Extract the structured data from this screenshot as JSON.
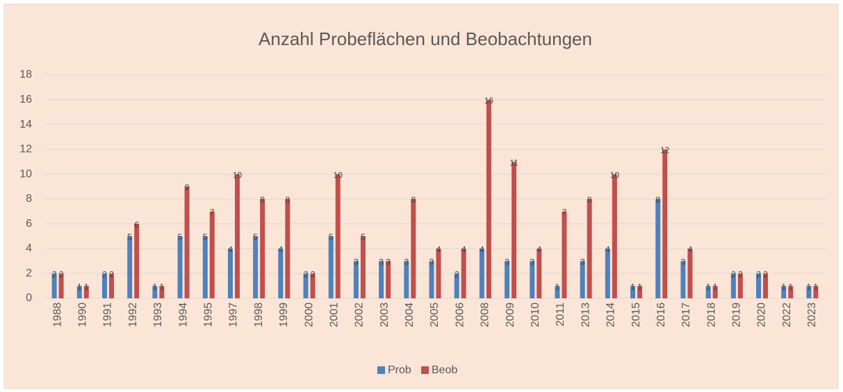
{
  "chart_data": {
    "type": "bar",
    "title": "Anzahl Probeflächen und Beobachtungen",
    "categories": [
      "1988",
      "1990",
      "1991",
      "1992",
      "1993",
      "1994",
      "1995",
      "1997",
      "1998",
      "1999",
      "2000",
      "2001",
      "2002",
      "2003",
      "2004",
      "2005",
      "2006",
      "2008",
      "2009",
      "2010",
      "2011",
      "2013",
      "2014",
      "2015",
      "2016",
      "2017",
      "2018",
      "2019",
      "2020",
      "2022",
      "2023"
    ],
    "series": [
      {
        "name": "Prob",
        "color": "#4f81bd",
        "values": [
          2,
          1,
          2,
          5,
          1,
          5,
          5,
          4,
          5,
          4,
          2,
          5,
          3,
          3,
          3,
          3,
          2,
          4,
          3,
          3,
          1,
          3,
          4,
          1,
          8,
          3,
          1,
          2,
          2,
          1,
          1
        ]
      },
      {
        "name": "Beob",
        "color": "#c0504d",
        "values": [
          2,
          1,
          2,
          6,
          1,
          9,
          7,
          10,
          8,
          8,
          2,
          10,
          5,
          3,
          8,
          4,
          4,
          16,
          11,
          4,
          7,
          8,
          10,
          1,
          12,
          4,
          1,
          2,
          2,
          1,
          1
        ]
      }
    ],
    "ylim": [
      0,
      18
    ],
    "yticks": [
      0,
      2,
      4,
      6,
      8,
      10,
      12,
      14,
      16,
      18
    ],
    "grid": true,
    "legend": "bottom"
  }
}
